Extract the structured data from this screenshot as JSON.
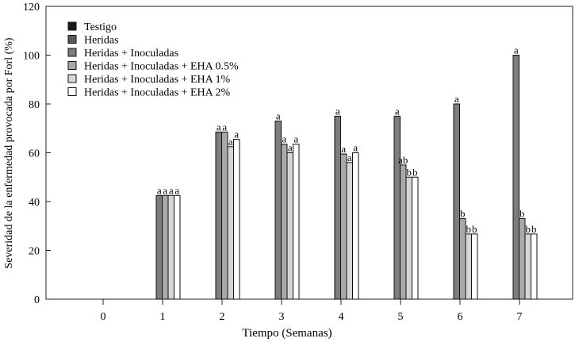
{
  "chart_data": {
    "type": "bar",
    "title": "",
    "xlabel": "Tiempo (Semanas)",
    "ylabel": "Severidad de la enfermedad provocada por Forl (%)",
    "ylim": [
      0,
      120
    ],
    "yticks": [
      "0",
      "20",
      "40",
      "60",
      "80",
      "100",
      "120"
    ],
    "categories": [
      "0",
      "1",
      "2",
      "3",
      "4",
      "5",
      "6",
      "7"
    ],
    "legend_position": "top-left",
    "legend": [
      "Testigo",
      "Heridas",
      "Heridas + Inoculadas",
      "Heridas + Inoculadas + EHA 0.5%",
      "Heridas + Inoculadas + EHA 1%",
      "Heridas + Inoculadas + EHA 2%"
    ],
    "series": [
      {
        "name": "Testigo",
        "color": "#1a1a1a",
        "values": [
          0,
          0,
          0,
          0,
          0,
          0,
          0,
          0
        ],
        "labels": [
          "",
          "",
          "",
          "",
          "",
          "",
          "",
          ""
        ]
      },
      {
        "name": "Heridas",
        "color": "#5a5a5a",
        "values": [
          0,
          0,
          0,
          0,
          0,
          0,
          0,
          0
        ],
        "labels": [
          "",
          "",
          "",
          "",
          "",
          "",
          "",
          ""
        ]
      },
      {
        "name": "Heridas + Inoculadas",
        "color": "#7d7d7d",
        "values": [
          0,
          42.5,
          68.5,
          73,
          75,
          75,
          80,
          100
        ],
        "labels": [
          "",
          "a",
          "a",
          "a",
          "a",
          "a",
          "a",
          "a"
        ]
      },
      {
        "name": "Heridas + Inoculadas + EHA 0.5%",
        "color": "#a8a8a8",
        "values": [
          0,
          42.5,
          68.5,
          63.5,
          59.5,
          55,
          33,
          33
        ],
        "labels": [
          "",
          "a",
          "a",
          "a",
          "a",
          "ab",
          "b",
          "b"
        ]
      },
      {
        "name": "Heridas + Inoculadas + EHA 1%",
        "color": "#d6d6d6",
        "values": [
          0,
          42.5,
          62.5,
          60,
          56,
          50,
          26.7,
          26.7
        ],
        "labels": [
          "",
          "a",
          "a",
          "a",
          "a",
          "b",
          "b",
          "b"
        ]
      },
      {
        "name": "Heridas + Inoculadas + EHA 2%",
        "color": "#ffffff",
        "values": [
          0,
          42.5,
          65.5,
          63.5,
          60,
          50,
          26.7,
          26.7
        ],
        "labels": [
          "",
          "a",
          "a",
          "a",
          "a",
          "b",
          "b",
          "b"
        ]
      }
    ]
  }
}
